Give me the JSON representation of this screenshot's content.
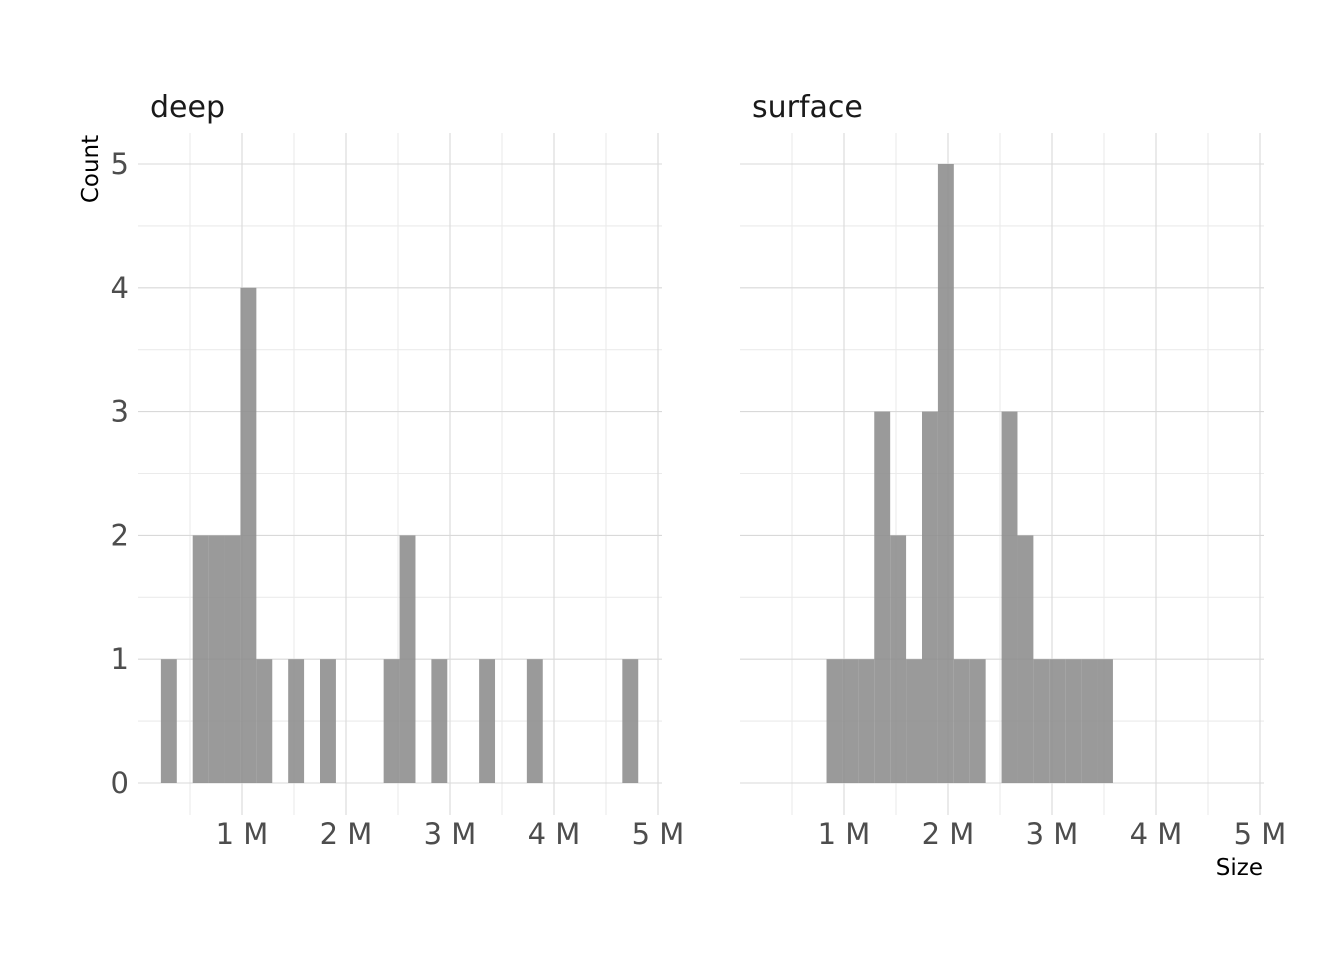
{
  "chart_data": {
    "type": "bar",
    "subtype": "histogram",
    "xlabel": "Size",
    "ylabel": "Count",
    "ylim": [
      0,
      5
    ],
    "y_ticks": [
      0,
      1,
      2,
      3,
      4,
      5
    ],
    "xlim": [
      0,
      5000000
    ],
    "x_ticks": [
      1000000,
      2000000,
      3000000,
      4000000,
      5000000
    ],
    "x_tick_labels": [
      "1 M",
      "2 M",
      "3 M",
      "4 M",
      "5 M"
    ],
    "bin_width": 153000,
    "bar_color": "#8c8c8c",
    "bar_opacity": 0.88,
    "grid": true,
    "panels": [
      {
        "title": "deep",
        "bins": [
          {
            "x0": 220000,
            "x1": 373000,
            "count": 1
          },
          {
            "x0": 526000,
            "x1": 679000,
            "count": 2
          },
          {
            "x0": 679000,
            "x1": 832000,
            "count": 2
          },
          {
            "x0": 832000,
            "x1": 985000,
            "count": 2
          },
          {
            "x0": 985000,
            "x1": 1138000,
            "count": 4
          },
          {
            "x0": 1138000,
            "x1": 1291000,
            "count": 1
          },
          {
            "x0": 1444000,
            "x1": 1597000,
            "count": 1
          },
          {
            "x0": 1750000,
            "x1": 1903000,
            "count": 1
          },
          {
            "x0": 2362000,
            "x1": 2515000,
            "count": 1
          },
          {
            "x0": 2515000,
            "x1": 2668000,
            "count": 2
          },
          {
            "x0": 2821000,
            "x1": 2974000,
            "count": 1
          },
          {
            "x0": 3280000,
            "x1": 3433000,
            "count": 1
          },
          {
            "x0": 3739000,
            "x1": 3892000,
            "count": 1
          },
          {
            "x0": 4657000,
            "x1": 4810000,
            "count": 1
          }
        ]
      },
      {
        "title": "surface",
        "bins": [
          {
            "x0": 832000,
            "x1": 985000,
            "count": 1
          },
          {
            "x0": 985000,
            "x1": 1138000,
            "count": 1
          },
          {
            "x0": 1138000,
            "x1": 1291000,
            "count": 1
          },
          {
            "x0": 1291000,
            "x1": 1444000,
            "count": 3
          },
          {
            "x0": 1444000,
            "x1": 1597000,
            "count": 2
          },
          {
            "x0": 1597000,
            "x1": 1750000,
            "count": 1
          },
          {
            "x0": 1750000,
            "x1": 1903000,
            "count": 3
          },
          {
            "x0": 1903000,
            "x1": 2056000,
            "count": 5
          },
          {
            "x0": 2056000,
            "x1": 2209000,
            "count": 1
          },
          {
            "x0": 2209000,
            "x1": 2362000,
            "count": 1
          },
          {
            "x0": 2515000,
            "x1": 2668000,
            "count": 3
          },
          {
            "x0": 2668000,
            "x1": 2821000,
            "count": 2
          },
          {
            "x0": 2821000,
            "x1": 2974000,
            "count": 1
          },
          {
            "x0": 2974000,
            "x1": 3127000,
            "count": 1
          },
          {
            "x0": 3127000,
            "x1": 3280000,
            "count": 1
          },
          {
            "x0": 3280000,
            "x1": 3433000,
            "count": 1
          },
          {
            "x0": 3433000,
            "x1": 3586000,
            "count": 1
          }
        ]
      }
    ]
  }
}
